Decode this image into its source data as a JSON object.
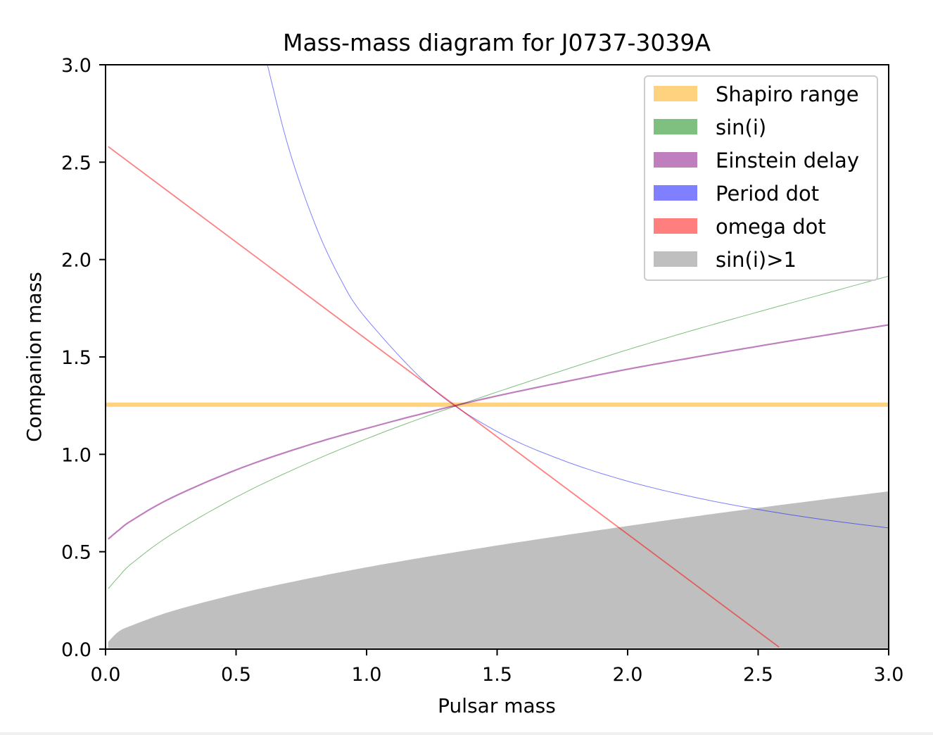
{
  "chart_data": {
    "type": "line",
    "title": "Mass-mass diagram for J0737-3039A",
    "xlabel": "Pulsar mass",
    "ylabel": "Companion mass",
    "xlim": [
      0,
      3
    ],
    "ylim": [
      0,
      3
    ],
    "xticks": [
      "0.0",
      "0.5",
      "1.0",
      "1.5",
      "2.0",
      "2.5",
      "3.0"
    ],
    "yticks": [
      "0.0",
      "0.5",
      "1.0",
      "1.5",
      "2.0",
      "2.5",
      "3.0"
    ],
    "grid": false,
    "legend_position": "top-right",
    "series": [
      {
        "name": "Shapiro range",
        "kind": "band",
        "color": "#ffa500",
        "alpha": 0.5,
        "x": [
          0,
          3
        ],
        "y_low": 1.244,
        "y_high": 1.266
      },
      {
        "name": "sin(i)",
        "kind": "line",
        "color": "#008000",
        "alpha": 0.5,
        "x": [
          0.01,
          0.05,
          0.1,
          0.25,
          0.5,
          0.75,
          1.0,
          1.25,
          1.5,
          1.75,
          2.0,
          2.25,
          2.5,
          2.75,
          3.0
        ],
        "y": [
          0.31,
          0.371,
          0.439,
          0.587,
          0.78,
          0.94,
          1.08,
          1.205,
          1.32,
          1.43,
          1.537,
          1.637,
          1.731,
          1.823,
          1.915
        ]
      },
      {
        "name": "Einstein delay",
        "kind": "line",
        "color": "#800080",
        "alpha": 0.5,
        "x": [
          0.01,
          0.05,
          0.1,
          0.25,
          0.5,
          0.75,
          1.0,
          1.25,
          1.5,
          1.75,
          2.0,
          2.25,
          2.5,
          2.75,
          3.0
        ],
        "y": [
          0.565,
          0.61,
          0.66,
          0.775,
          0.92,
          1.036,
          1.133,
          1.221,
          1.3,
          1.37,
          1.437,
          1.497,
          1.555,
          1.61,
          1.665
        ]
      },
      {
        "name": "Period dot",
        "kind": "line",
        "color": "#0000ff",
        "alpha": 0.5,
        "x": [
          0.62,
          0.7,
          0.8,
          0.9,
          1.0,
          1.25,
          1.5,
          1.75,
          2.0,
          2.25,
          2.5,
          2.75,
          3.0
        ],
        "y": [
          3.0,
          2.58,
          2.19,
          1.9,
          1.695,
          1.34,
          1.117,
          0.97,
          0.862,
          0.781,
          0.717,
          0.665,
          0.622
        ]
      },
      {
        "name": "omega dot",
        "kind": "line",
        "color": "#ff0000",
        "alpha": 0.5,
        "x": [
          0.01,
          2.58
        ],
        "y": [
          2.58,
          0.01
        ]
      },
      {
        "name": "sin(i)>1",
        "kind": "fill",
        "color": "#808080",
        "alpha": 0.5,
        "x": [
          0.01,
          0.05,
          0.1,
          0.25,
          0.5,
          0.75,
          1.0,
          1.25,
          1.5,
          1.75,
          2.0,
          2.25,
          2.5,
          2.75,
          3.0
        ],
        "y": [
          0.037,
          0.09,
          0.121,
          0.193,
          0.282,
          0.355,
          0.42,
          0.478,
          0.532,
          0.583,
          0.632,
          0.68,
          0.725,
          0.768,
          0.81
        ]
      }
    ]
  }
}
